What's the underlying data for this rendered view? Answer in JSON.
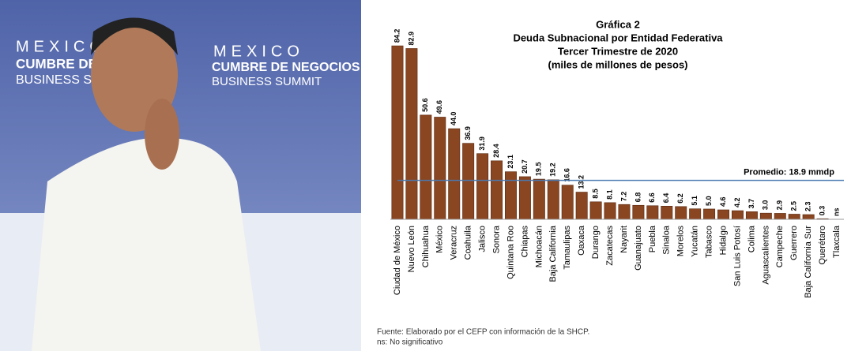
{
  "photo": {
    "signage": [
      "MEXICO",
      "CUMBRE DE NEGOCIOS",
      "BUSINESS SUMMIT"
    ]
  },
  "chart_data": {
    "type": "bar",
    "title": "Gráfica 2",
    "subtitle_lines": [
      "Deuda Subnacional por Entidad Federativa",
      "Tercer Trimestre de 2020",
      "(miles de millones de pesos)"
    ],
    "categories": [
      "Ciudad de México",
      "Nuevo León",
      "Chihuahua",
      "México",
      "Veracruz",
      "Coahuila",
      "Jalisco",
      "Sonora",
      "Quintana Roo",
      "Chiapas",
      "Michoacán",
      "Baja California",
      "Tamaulipas",
      "Oaxaca",
      "Durango",
      "Zacatecas",
      "Nayarit",
      "Guanajuato",
      "Puebla",
      "Sinaloa",
      "Morelos",
      "Yucatán",
      "Tabasco",
      "Hidalgo",
      "San Luis Potosí",
      "Colima",
      "Aguascalientes",
      "Campeche",
      "Guerrero",
      "Baja California Sur",
      "Querétaro",
      "Tlaxcala"
    ],
    "values": [
      84.2,
      82.9,
      50.6,
      49.6,
      44.0,
      36.9,
      31.9,
      28.4,
      23.1,
      20.7,
      19.5,
      19.2,
      16.6,
      13.2,
      8.5,
      8.1,
      7.2,
      6.8,
      6.6,
      6.4,
      6.2,
      5.1,
      5.0,
      4.6,
      4.2,
      3.7,
      3.0,
      2.9,
      2.5,
      2.3,
      0.3,
      null
    ],
    "value_labels": [
      "84.2",
      "82.9",
      "50.6",
      "49.6",
      "44.0",
      "36.9",
      "31.9",
      "28.4",
      "23.1",
      "20.7",
      "19.5",
      "19.2",
      "16.6",
      "13.2",
      "8.5",
      "8.1",
      "7.2",
      "6.8",
      "6.6",
      "6.4",
      "6.2",
      "5.1",
      "5.0",
      "4.6",
      "4.2",
      "3.7",
      "3.0",
      "2.9",
      "2.5",
      "2.3",
      "0.3",
      "ns"
    ],
    "color": "#8a4521",
    "ylim": [
      0,
      85
    ],
    "average": {
      "value": 18.9,
      "label": "Promedio: 18.9 mmdp",
      "color": "#4a7ab0"
    },
    "notes": [
      "Fuente:  Elaborado por el CEFP con información de la SHCP.",
      "ns: No significativo"
    ]
  }
}
